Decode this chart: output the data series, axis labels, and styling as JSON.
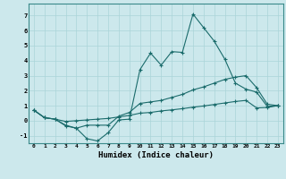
{
  "xlabel": "Humidex (Indice chaleur)",
  "background_color": "#cce8ec",
  "grid_color": "#aad4d8",
  "line_color": "#1a6b6b",
  "xlim": [
    -0.5,
    23.5
  ],
  "ylim": [
    -1.5,
    7.8
  ],
  "xticks": [
    0,
    1,
    2,
    3,
    4,
    5,
    6,
    7,
    8,
    9,
    10,
    11,
    12,
    13,
    14,
    15,
    16,
    17,
    18,
    19,
    20,
    21,
    22,
    23
  ],
  "yticks": [
    -1,
    0,
    1,
    2,
    3,
    4,
    5,
    6,
    7
  ],
  "line1_x": [
    0,
    1,
    2,
    3,
    4,
    5,
    6,
    7,
    8,
    9,
    10,
    11,
    12,
    13,
    14,
    15,
    16,
    17,
    18,
    19,
    20,
    21,
    22,
    23
  ],
  "line1_y": [
    0.7,
    0.2,
    0.1,
    -0.35,
    -0.5,
    -1.2,
    -1.35,
    -0.8,
    0.05,
    0.1,
    3.4,
    4.5,
    3.7,
    4.6,
    4.55,
    7.1,
    6.2,
    5.3,
    4.1,
    2.5,
    2.1,
    1.9,
    0.95,
    1.0
  ],
  "line2_x": [
    0,
    1,
    2,
    3,
    4,
    5,
    6,
    7,
    8,
    9,
    10,
    11,
    12,
    13,
    14,
    15,
    16,
    17,
    18,
    19,
    20,
    21,
    22,
    23
  ],
  "line2_y": [
    0.7,
    0.2,
    0.1,
    -0.3,
    -0.5,
    -0.3,
    -0.3,
    -0.3,
    0.3,
    0.55,
    1.15,
    1.25,
    1.35,
    1.55,
    1.75,
    2.05,
    2.25,
    2.5,
    2.75,
    2.9,
    3.0,
    2.2,
    1.1,
    1.0
  ],
  "line3_x": [
    0,
    1,
    2,
    3,
    4,
    5,
    6,
    7,
    8,
    9,
    10,
    11,
    12,
    13,
    14,
    15,
    16,
    17,
    18,
    19,
    20,
    21,
    22,
    23
  ],
  "line3_y": [
    0.7,
    0.2,
    0.1,
    -0.05,
    0.0,
    0.05,
    0.1,
    0.15,
    0.25,
    0.35,
    0.5,
    0.55,
    0.65,
    0.72,
    0.8,
    0.9,
    0.98,
    1.08,
    1.18,
    1.28,
    1.35,
    0.85,
    0.88,
    1.0
  ]
}
